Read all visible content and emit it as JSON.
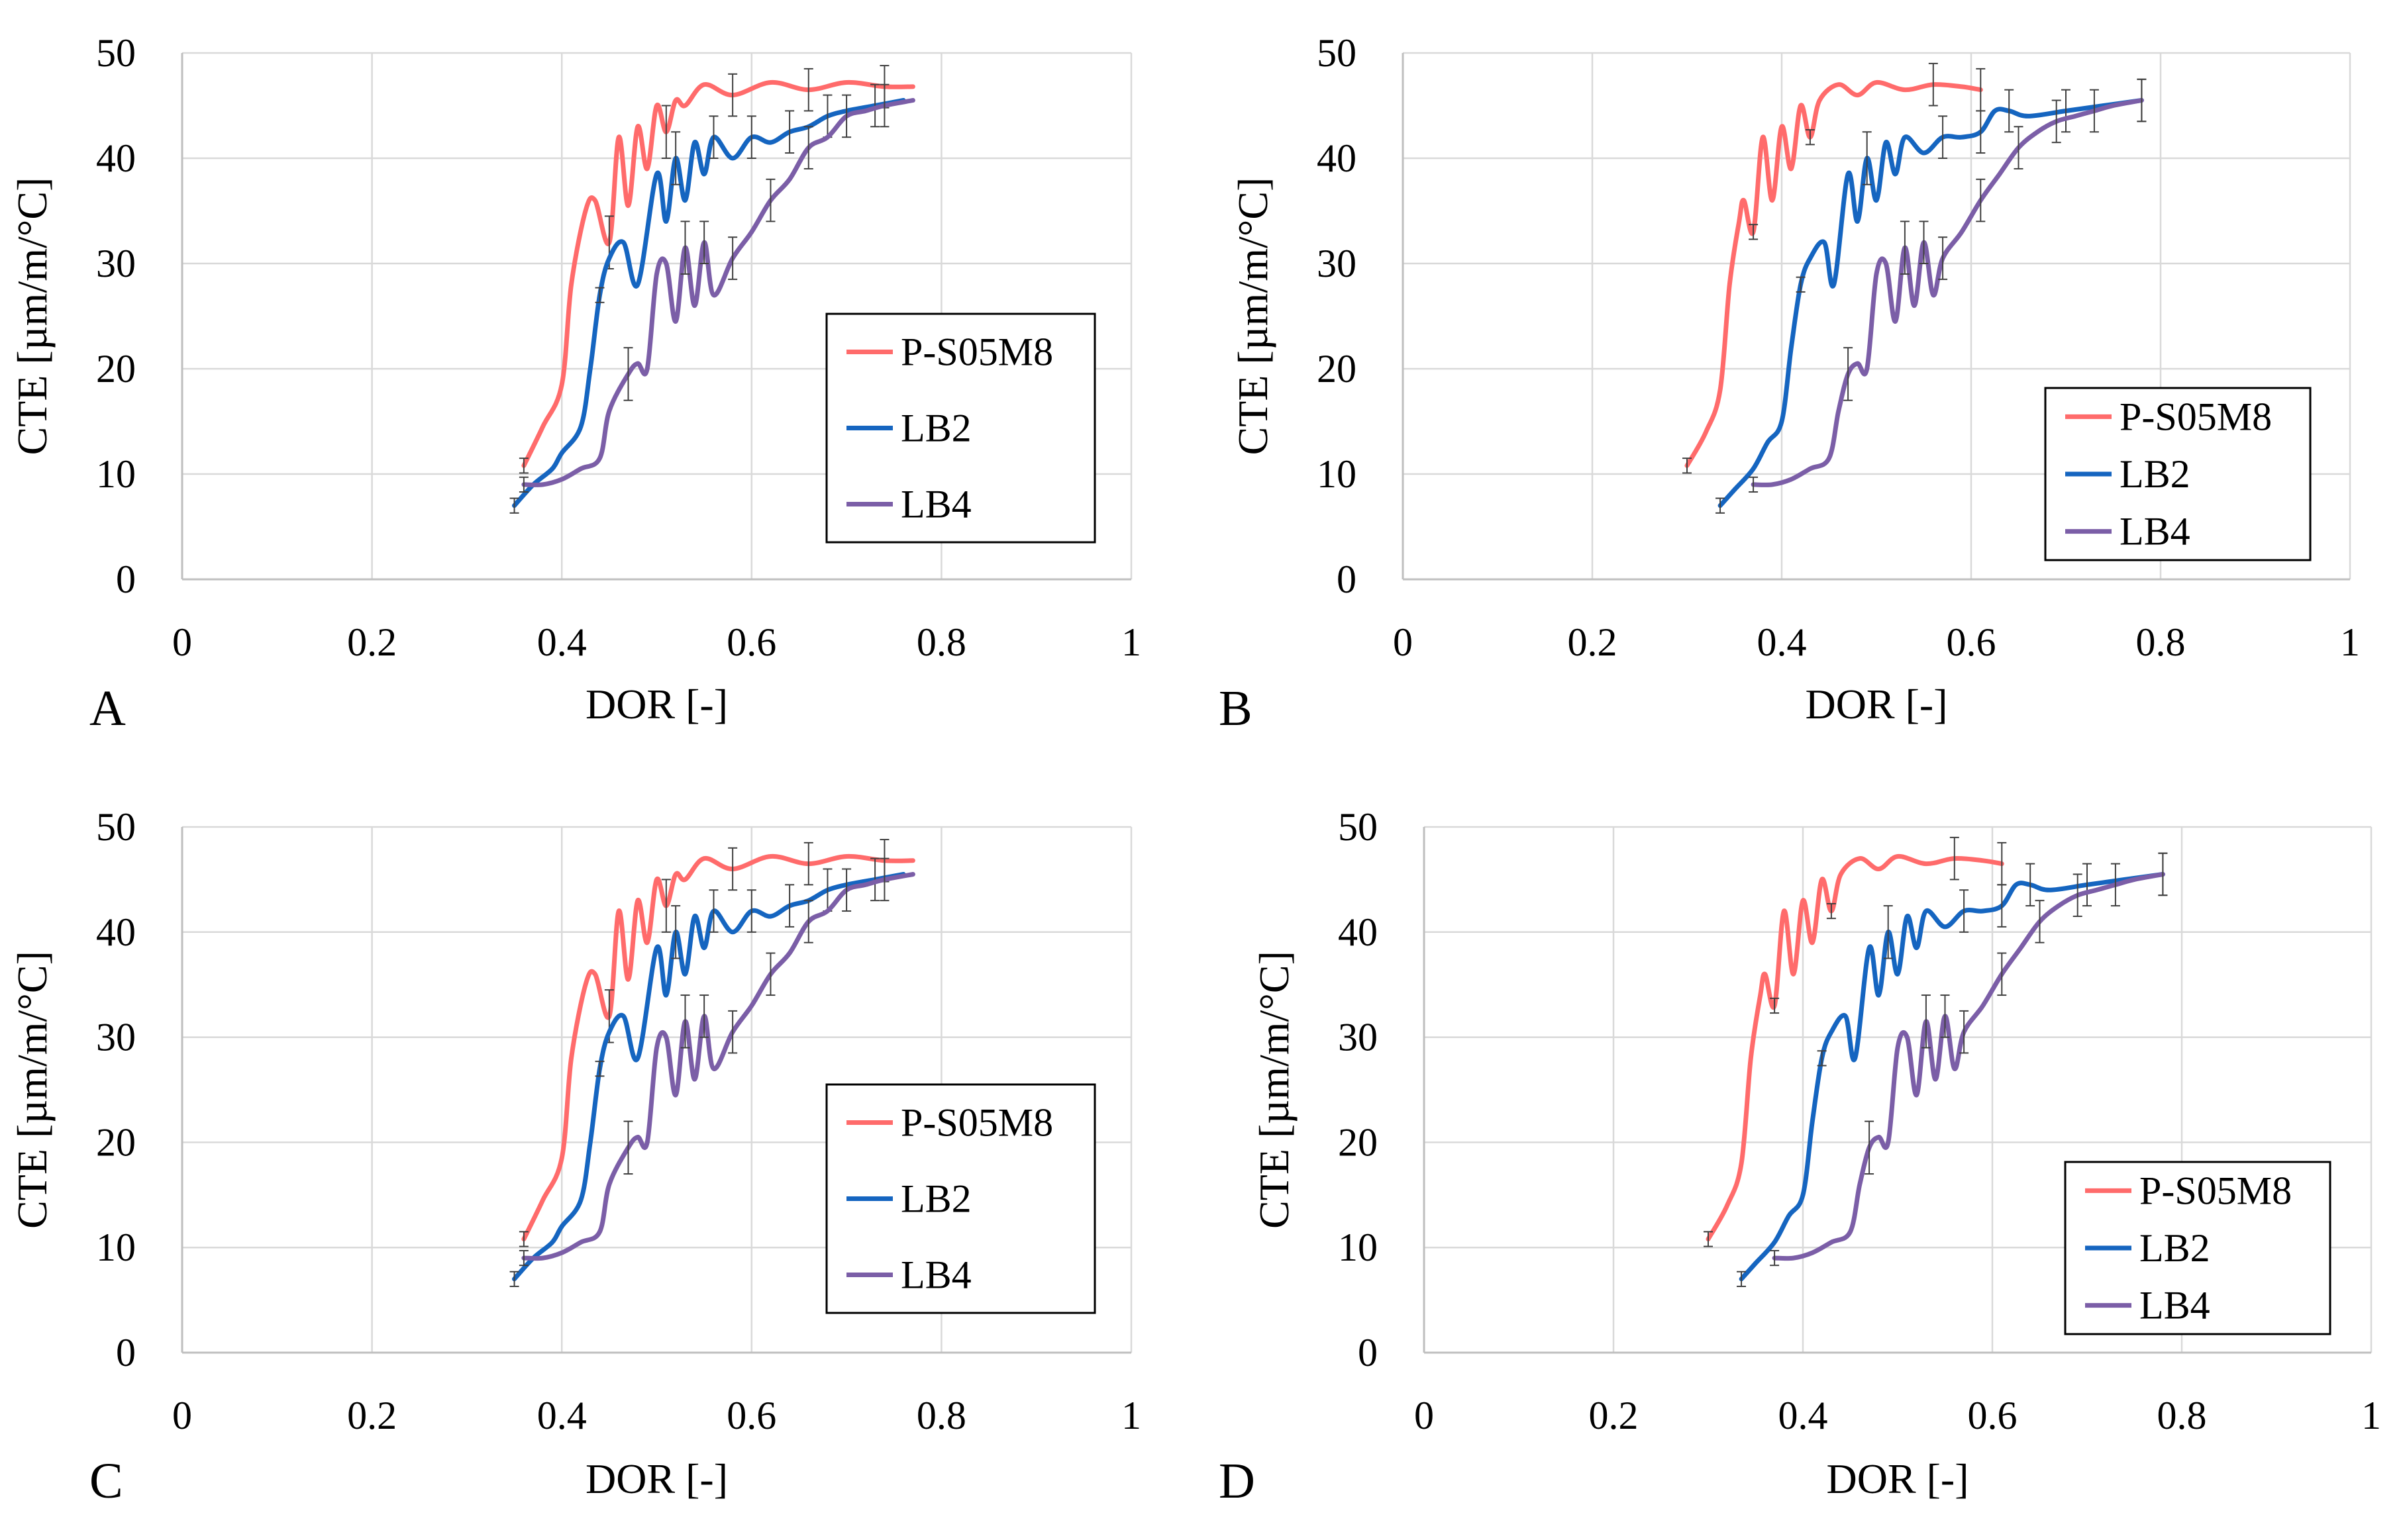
{
  "figure": {
    "series_styles": [
      {
        "name": "P-S05M8",
        "color": "#ff6b6b"
      },
      {
        "name": "LB2",
        "color": "#1565c0"
      },
      {
        "name": "LB4",
        "color": "#7b5ea7"
      }
    ],
    "gridline_color": "#d9d9d9",
    "axis_color": "#bfbfbf",
    "errorbar_color": "#404040"
  },
  "chart_data": [
    {
      "panel": "A",
      "type": "line",
      "title": "",
      "xlabel": "DOR [-]",
      "ylabel": "CTE [µm/m/°C]",
      "xlim": [
        0,
        1
      ],
      "ylim": [
        0,
        50
      ],
      "xticks": [
        "0",
        "0.2",
        "0.4",
        "0.6",
        "0.8",
        "1"
      ],
      "yticks": [
        "0",
        "10",
        "20",
        "30",
        "40",
        "50"
      ],
      "grid": true,
      "legend": {
        "position": "center-right",
        "entries": [
          "P-S05M8",
          "LB2",
          "LB4"
        ]
      },
      "series": [
        {
          "name": "P-S05M8",
          "x": [
            0.36,
            0.38,
            0.4,
            0.41,
            0.425,
            0.435,
            0.45,
            0.46,
            0.47,
            0.48,
            0.49,
            0.5,
            0.51,
            0.52,
            0.53,
            0.55,
            0.58,
            0.62,
            0.66,
            0.7,
            0.74,
            0.77
          ],
          "y": [
            10.8,
            14.5,
            18.5,
            28.0,
            35.0,
            36.0,
            32.0,
            42.0,
            35.5,
            43.0,
            39.0,
            45.0,
            42.5,
            45.5,
            45.0,
            47.0,
            46.0,
            47.2,
            46.5,
            47.2,
            46.8,
            46.8
          ]
        },
        {
          "name": "LB2",
          "x": [
            0.35,
            0.37,
            0.39,
            0.4,
            0.42,
            0.43,
            0.44,
            0.45,
            0.465,
            0.48,
            0.5,
            0.51,
            0.52,
            0.53,
            0.54,
            0.55,
            0.56,
            0.58,
            0.6,
            0.62,
            0.64,
            0.66,
            0.68,
            0.7,
            0.73,
            0.76
          ],
          "y": [
            7.0,
            9.0,
            10.5,
            12.0,
            14.5,
            20.0,
            27.0,
            30.5,
            32.0,
            28.0,
            38.5,
            34.0,
            40.0,
            36.0,
            41.5,
            38.5,
            42.0,
            40.0,
            42.0,
            41.5,
            42.5,
            43.0,
            44.0,
            44.5,
            45.0,
            45.5
          ]
        },
        {
          "name": "LB4",
          "x": [
            0.36,
            0.38,
            0.4,
            0.42,
            0.44,
            0.45,
            0.47,
            0.48,
            0.49,
            0.5,
            0.51,
            0.52,
            0.53,
            0.54,
            0.55,
            0.56,
            0.58,
            0.6,
            0.62,
            0.64,
            0.66,
            0.68,
            0.7,
            0.72,
            0.74,
            0.77
          ],
          "y": [
            9.0,
            9.0,
            9.5,
            10.5,
            11.5,
            16.0,
            19.5,
            20.5,
            20.0,
            29.0,
            30.0,
            24.5,
            31.5,
            26.0,
            32.0,
            27.0,
            30.5,
            33.0,
            36.0,
            38.0,
            41.0,
            42.0,
            44.0,
            44.5,
            45.0,
            45.5
          ]
        }
      ]
    },
    {
      "panel": "B",
      "type": "line",
      "title": "",
      "xlabel": "DOR [-]",
      "ylabel": "CTE [µm/m/°C]",
      "xlim": [
        0,
        1
      ],
      "ylim": [
        0,
        50
      ],
      "xticks": [
        "0",
        "0.2",
        "0.4",
        "0.6",
        "0.8",
        "1"
      ],
      "yticks": [
        "0",
        "10",
        "20",
        "30",
        "40",
        "50"
      ],
      "grid": true,
      "legend": {
        "position": "bottom-right",
        "entries": [
          "P-S05M8",
          "LB2",
          "LB4"
        ]
      },
      "series": [
        {
          "name": "P-S05M8",
          "x": [
            0.3,
            0.32,
            0.335,
            0.345,
            0.355,
            0.36,
            0.37,
            0.38,
            0.39,
            0.4,
            0.41,
            0.42,
            0.43,
            0.44,
            0.46,
            0.48,
            0.5,
            0.53,
            0.56,
            0.59,
            0.61
          ],
          "y": [
            10.8,
            14.0,
            18.0,
            28.0,
            34.0,
            36.0,
            33.0,
            42.0,
            36.0,
            43.0,
            39.0,
            45.0,
            42.0,
            45.5,
            47.0,
            46.0,
            47.2,
            46.5,
            47.0,
            46.8,
            46.5
          ]
        },
        {
          "name": "LB2",
          "x": [
            0.335,
            0.35,
            0.37,
            0.385,
            0.4,
            0.41,
            0.42,
            0.43,
            0.445,
            0.455,
            0.47,
            0.48,
            0.49,
            0.5,
            0.51,
            0.52,
            0.53,
            0.55,
            0.57,
            0.59,
            0.61,
            0.625,
            0.64,
            0.66,
            0.7,
            0.74,
            0.78
          ],
          "y": [
            7.0,
            8.5,
            10.5,
            13.0,
            15.0,
            22.0,
            28.0,
            30.5,
            32.0,
            28.0,
            38.5,
            34.0,
            40.0,
            36.0,
            41.5,
            38.5,
            42.0,
            40.5,
            42.0,
            42.0,
            42.5,
            44.5,
            44.5,
            44.0,
            44.5,
            45.0,
            45.5
          ]
        },
        {
          "name": "LB4",
          "x": [
            0.37,
            0.39,
            0.41,
            0.43,
            0.45,
            0.46,
            0.47,
            0.48,
            0.49,
            0.5,
            0.51,
            0.52,
            0.53,
            0.54,
            0.55,
            0.56,
            0.57,
            0.59,
            0.61,
            0.63,
            0.65,
            0.67,
            0.69,
            0.71,
            0.73,
            0.75,
            0.78
          ],
          "y": [
            9.0,
            9.0,
            9.5,
            10.5,
            11.5,
            16.0,
            19.5,
            20.5,
            20.0,
            29.0,
            30.0,
            24.5,
            31.5,
            26.0,
            32.0,
            27.0,
            30.5,
            33.0,
            36.0,
            38.5,
            41.0,
            42.5,
            43.5,
            44.0,
            44.5,
            45.0,
            45.5
          ]
        }
      ]
    },
    {
      "panel": "C",
      "type": "line",
      "title": "",
      "xlabel": "DOR [-]",
      "ylabel": "CTE [µm/m/°C]",
      "xlim": [
        0,
        1
      ],
      "ylim": [
        0,
        50
      ],
      "xticks": [
        "0",
        "0.2",
        "0.4",
        "0.6",
        "0.8",
        "1"
      ],
      "yticks": [
        "0",
        "10",
        "20",
        "30",
        "40",
        "50"
      ],
      "grid": true,
      "legend": {
        "position": "center-right",
        "entries": [
          "P-S05M8",
          "LB2",
          "LB4"
        ]
      },
      "series": [
        {
          "name": "P-S05M8",
          "x": [
            0.36,
            0.38,
            0.4,
            0.41,
            0.425,
            0.435,
            0.45,
            0.46,
            0.47,
            0.48,
            0.49,
            0.5,
            0.51,
            0.52,
            0.53,
            0.55,
            0.58,
            0.62,
            0.66,
            0.7,
            0.74,
            0.77
          ],
          "y": [
            10.8,
            14.5,
            18.5,
            28.0,
            35.0,
            36.0,
            32.0,
            42.0,
            35.5,
            43.0,
            39.0,
            45.0,
            42.5,
            45.5,
            45.0,
            47.0,
            46.0,
            47.2,
            46.5,
            47.2,
            46.8,
            46.8
          ]
        },
        {
          "name": "LB2",
          "x": [
            0.35,
            0.37,
            0.39,
            0.4,
            0.42,
            0.43,
            0.44,
            0.45,
            0.465,
            0.48,
            0.5,
            0.51,
            0.52,
            0.53,
            0.54,
            0.55,
            0.56,
            0.58,
            0.6,
            0.62,
            0.64,
            0.66,
            0.68,
            0.7,
            0.73,
            0.76
          ],
          "y": [
            7.0,
            9.0,
            10.5,
            12.0,
            14.5,
            20.0,
            27.0,
            30.5,
            32.0,
            28.0,
            38.5,
            34.0,
            40.0,
            36.0,
            41.5,
            38.5,
            42.0,
            40.0,
            42.0,
            41.5,
            42.5,
            43.0,
            44.0,
            44.5,
            45.0,
            45.5
          ]
        },
        {
          "name": "LB4",
          "x": [
            0.36,
            0.38,
            0.4,
            0.42,
            0.44,
            0.45,
            0.47,
            0.48,
            0.49,
            0.5,
            0.51,
            0.52,
            0.53,
            0.54,
            0.55,
            0.56,
            0.58,
            0.6,
            0.62,
            0.64,
            0.66,
            0.68,
            0.7,
            0.72,
            0.74,
            0.77
          ],
          "y": [
            9.0,
            9.0,
            9.5,
            10.5,
            11.5,
            16.0,
            19.5,
            20.5,
            20.0,
            29.0,
            30.0,
            24.5,
            31.5,
            26.0,
            32.0,
            27.0,
            30.5,
            33.0,
            36.0,
            38.0,
            41.0,
            42.0,
            44.0,
            44.5,
            45.0,
            45.5
          ]
        }
      ]
    },
    {
      "panel": "D",
      "type": "line",
      "title": "",
      "xlabel": "DOR [-]",
      "ylabel": "CTE [µm/m/°C]",
      "xlim": [
        0,
        1
      ],
      "ylim": [
        0,
        50
      ],
      "xticks": [
        "0",
        "0.2",
        "0.4",
        "0.6",
        "0.8",
        "1"
      ],
      "yticks": [
        "0",
        "10",
        "20",
        "30",
        "40",
        "50"
      ],
      "grid": true,
      "legend": {
        "position": "bottom-right",
        "entries": [
          "P-S05M8",
          "LB2",
          "LB4"
        ]
      },
      "series": [
        {
          "name": "P-S05M8",
          "x": [
            0.3,
            0.32,
            0.335,
            0.345,
            0.355,
            0.36,
            0.37,
            0.38,
            0.39,
            0.4,
            0.41,
            0.42,
            0.43,
            0.44,
            0.46,
            0.48,
            0.5,
            0.53,
            0.56,
            0.59,
            0.61
          ],
          "y": [
            10.8,
            14.0,
            18.0,
            28.0,
            34.0,
            36.0,
            33.0,
            42.0,
            36.0,
            43.0,
            39.0,
            45.0,
            42.0,
            45.5,
            47.0,
            46.0,
            47.2,
            46.5,
            47.0,
            46.8,
            46.5
          ]
        },
        {
          "name": "LB2",
          "x": [
            0.335,
            0.35,
            0.37,
            0.385,
            0.4,
            0.41,
            0.42,
            0.43,
            0.445,
            0.455,
            0.47,
            0.48,
            0.49,
            0.5,
            0.51,
            0.52,
            0.53,
            0.55,
            0.57,
            0.59,
            0.61,
            0.625,
            0.64,
            0.66,
            0.7,
            0.74,
            0.78
          ],
          "y": [
            7.0,
            8.5,
            10.5,
            13.0,
            15.0,
            22.0,
            28.0,
            30.5,
            32.0,
            28.0,
            38.5,
            34.0,
            40.0,
            36.0,
            41.5,
            38.5,
            42.0,
            40.5,
            42.0,
            42.0,
            42.5,
            44.5,
            44.5,
            44.0,
            44.5,
            45.0,
            45.5
          ]
        },
        {
          "name": "LB4",
          "x": [
            0.37,
            0.39,
            0.41,
            0.43,
            0.45,
            0.46,
            0.47,
            0.48,
            0.49,
            0.5,
            0.51,
            0.52,
            0.53,
            0.54,
            0.55,
            0.56,
            0.57,
            0.59,
            0.61,
            0.63,
            0.65,
            0.67,
            0.69,
            0.71,
            0.73,
            0.75,
            0.78
          ],
          "y": [
            9.0,
            9.0,
            9.5,
            10.5,
            11.5,
            16.0,
            19.5,
            20.5,
            20.0,
            29.0,
            30.0,
            24.5,
            31.5,
            26.0,
            32.0,
            27.0,
            30.5,
            33.0,
            36.0,
            38.5,
            41.0,
            42.5,
            43.5,
            44.0,
            44.5,
            45.0,
            45.5
          ]
        }
      ]
    }
  ]
}
